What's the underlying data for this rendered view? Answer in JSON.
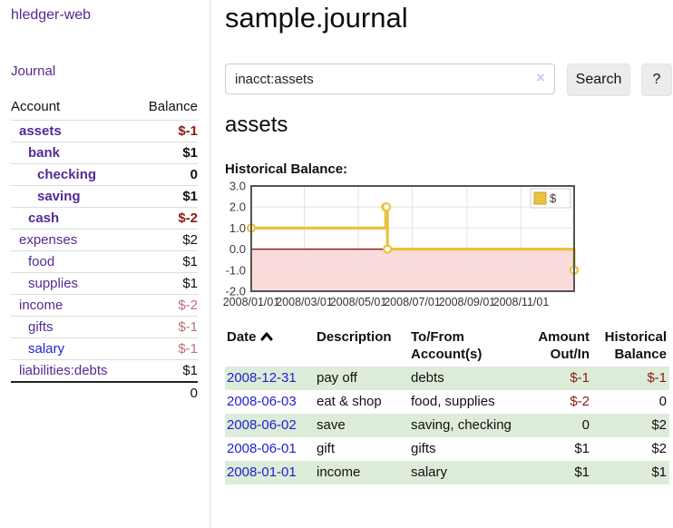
{
  "palette": {
    "purple": "#552a93",
    "blue": "#1f1fd1",
    "negStrong": "#8e1a10",
    "negSoft": "#b96f74",
    "rowGreen": "#ddecd9",
    "btn": "#ececec"
  },
  "sidebar": {
    "brand": "hledger-web",
    "nav_journal": "Journal",
    "accounts_header": {
      "account": "Account",
      "balance": "Balance"
    },
    "accounts": [
      {
        "name": "assets",
        "balance": "$-1"
      },
      {
        "name": "bank",
        "balance": "$1"
      },
      {
        "name": "checking",
        "balance": "0"
      },
      {
        "name": "saving",
        "balance": "$1"
      },
      {
        "name": "cash",
        "balance": "$-2"
      },
      {
        "name": "expenses",
        "balance": "$2"
      },
      {
        "name": "food",
        "balance": "$1"
      },
      {
        "name": "supplies",
        "balance": "$1"
      },
      {
        "name": "income",
        "balance": "$-2"
      },
      {
        "name": "gifts",
        "balance": "$-1"
      },
      {
        "name": "salary",
        "balance": "$-1"
      },
      {
        "name": "liabilities:debts",
        "balance": "$1"
      }
    ],
    "total": "0"
  },
  "header": {
    "title": "sample.journal"
  },
  "search": {
    "value": "inacct:assets",
    "clear_icon": "×",
    "button_label": "Search",
    "help_label": "?"
  },
  "register": {
    "heading": "assets",
    "chart_label": "Historical Balance:"
  },
  "chart_data": {
    "type": "line",
    "step": true,
    "title": "Historical Balance",
    "series": [
      {
        "name": "$",
        "x": [
          "2008-01-01",
          "2008-06-01",
          "2008-06-02",
          "2008-06-03",
          "2008-12-31"
        ],
        "values": [
          1,
          2,
          2,
          0,
          -1
        ]
      }
    ],
    "x_ticks": [
      "2008/01/01",
      "2008/03/01",
      "2008/05/01",
      "2008/07/01",
      "2008/09/01",
      "2008/11/01"
    ],
    "y_ticks": [
      3.0,
      2.0,
      1.0,
      0.0,
      -1.0,
      -2.0
    ],
    "ylim": [
      -2,
      3
    ],
    "xlim": [
      "2008-01-01",
      "2008-12-31"
    ],
    "legend": {
      "label": "$",
      "position": "top-right"
    },
    "grid": true,
    "line_color": "#e9c23f",
    "marker_fill": "#ffffff",
    "zero_line_color": "#8b0000",
    "negative_region_fill": "#fbdada",
    "border_color": "#545454",
    "grid_color": "#e3e3e3"
  },
  "table": {
    "headers": {
      "date": "Date",
      "description": "Description",
      "accounts": "To/From Account(s)",
      "amount": "Amount Out/In",
      "balance": "Historical Balance"
    },
    "rows": [
      {
        "date": "2008-12-31",
        "description": "pay off",
        "accounts": "debts",
        "amount": "$-1",
        "balance": "$-1"
      },
      {
        "date": "2008-06-03",
        "description": "eat & shop",
        "accounts": "food, supplies",
        "amount": "$-2",
        "balance": "0"
      },
      {
        "date": "2008-06-02",
        "description": "save",
        "accounts": "saving, checking",
        "amount": "0",
        "balance": "$2"
      },
      {
        "date": "2008-06-01",
        "description": "gift",
        "accounts": "gifts",
        "amount": "$1",
        "balance": "$2"
      },
      {
        "date": "2008-01-01",
        "description": "income",
        "accounts": "salary",
        "amount": "$1",
        "balance": "$1"
      }
    ]
  }
}
